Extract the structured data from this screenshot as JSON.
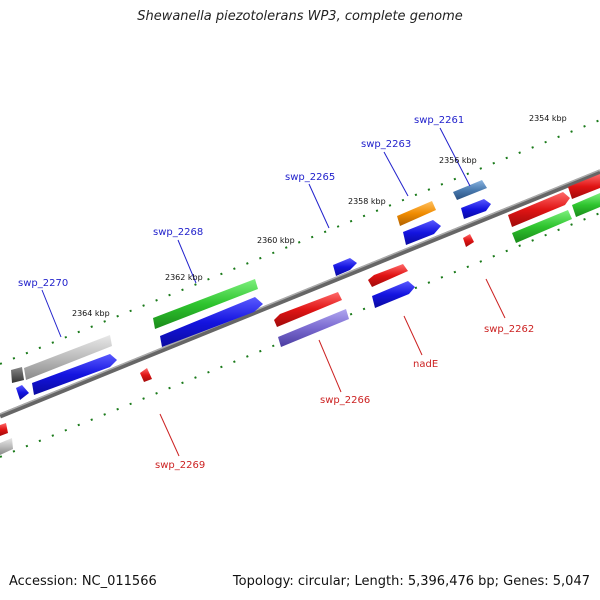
{
  "title": "Shewanella piezotolerans WP3, complete genome",
  "footer": {
    "accession": "Accession: NC_011566",
    "stats": "Topology: circular; Length: 5,396,476 bp; Genes: 5,047"
  },
  "kbp_labels": [
    "2354 kbp",
    "2356 kbp",
    "2358 kbp",
    "2360 kbp",
    "2362 kbp",
    "2364 kbp"
  ],
  "gene_labels_top": [
    "swp_2261",
    "swp_2263",
    "swp_2265",
    "swp_2268",
    "swp_2270"
  ],
  "gene_labels_bottom": [
    "swp_2262",
    "nadE",
    "swp_2266",
    "swp_2269"
  ],
  "colors": {
    "backbone": "#777777",
    "tick": "#1a7a1a",
    "label_forward": "#2222cc",
    "label_reverse": "#cc2222",
    "gene_blue": "#1414e0",
    "gene_red": "#e01414",
    "gene_green": "#2ec42e",
    "gene_gray": "#bcbcbc",
    "gene_orange": "#f08c00",
    "gene_steel": "#4a7bb0",
    "gene_purple": "#7a6ad0",
    "gene_darkgray": "#555555"
  }
}
